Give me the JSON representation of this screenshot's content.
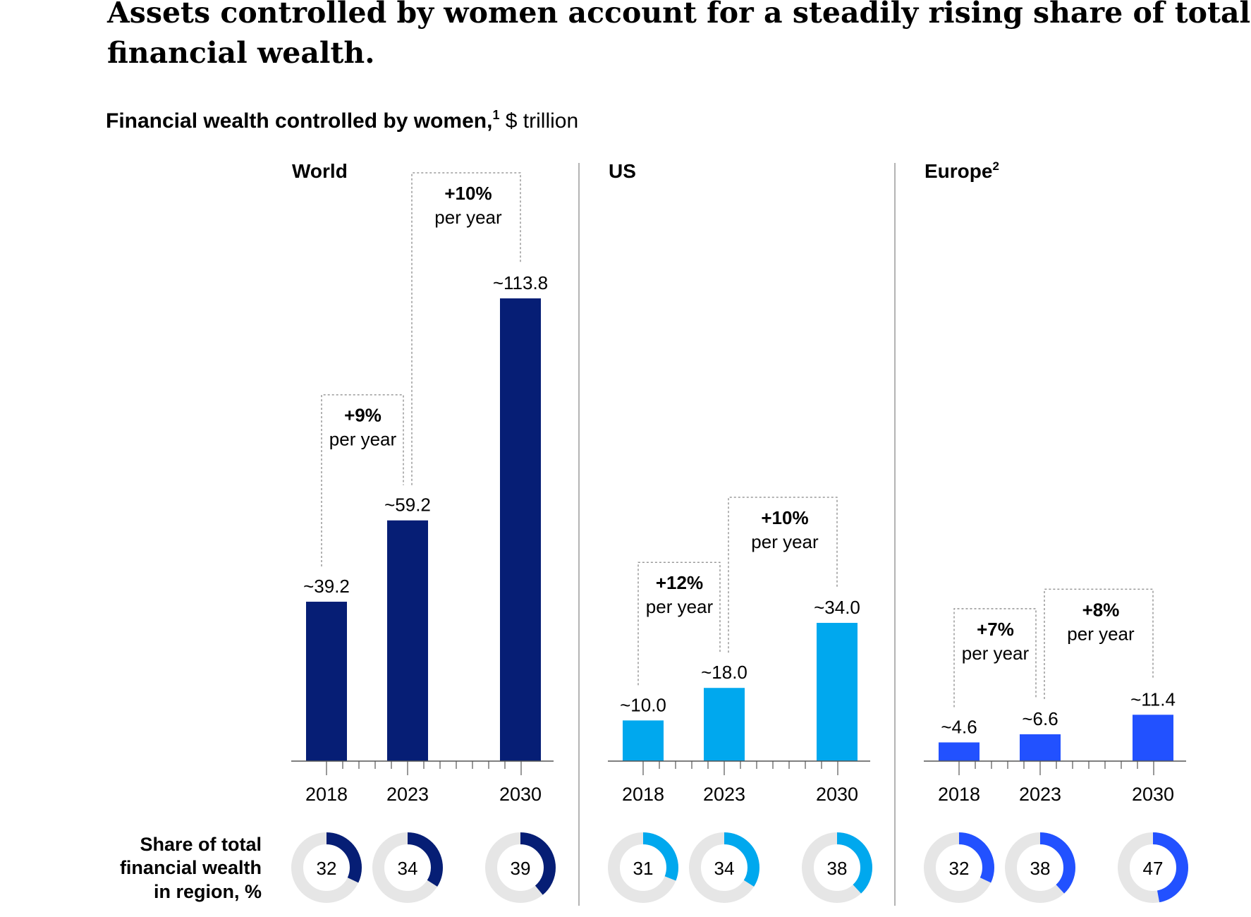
{
  "headline": "Assets controlled by women account for a steadily rising share of total financial wealth.",
  "headline_lines": [
    "Assets controlled by women account for a steadily rising share of total",
    "financial wealth."
  ],
  "subtitle": {
    "bold": "Financial wealth controlled by women,",
    "footnote": "1",
    "unit": " $ trillion"
  },
  "share_label_lines": [
    "Share of total",
    "financial wealth",
    "in region, %"
  ],
  "colors": {
    "world": "#061e75",
    "us": "#00a8ee",
    "europe": "#2251ff",
    "ring_background": "#e6e6e6",
    "text": "#000000",
    "axis": "#555555",
    "divider": "#9a9a9a",
    "dotted": "#888888"
  },
  "chart_data": [
    {
      "type": "bar",
      "region": "World",
      "title": "World",
      "title_footnote": "",
      "color_key": "world",
      "categories": [
        "2018",
        "2023",
        "2030"
      ],
      "values": [
        39.2,
        59.2,
        113.8
      ],
      "value_labels": [
        "~39.2",
        "~59.2",
        "~113.8"
      ],
      "growth": [
        {
          "from": "2018",
          "to": "2023",
          "rate": "+9%",
          "unit": "per year"
        },
        {
          "from": "2023",
          "to": "2030",
          "rate": "+10%",
          "unit": "per year"
        }
      ],
      "share": [
        32,
        34,
        39
      ],
      "ylim": [
        0,
        113.8
      ]
    },
    {
      "type": "bar",
      "region": "US",
      "title": "US",
      "title_footnote": "",
      "color_key": "us",
      "categories": [
        "2018",
        "2023",
        "2030"
      ],
      "values": [
        10.0,
        18.0,
        34.0
      ],
      "value_labels": [
        "~10.0",
        "~18.0",
        "~34.0"
      ],
      "growth": [
        {
          "from": "2018",
          "to": "2023",
          "rate": "+12%",
          "unit": "per year"
        },
        {
          "from": "2023",
          "to": "2030",
          "rate": "+10%",
          "unit": "per year"
        }
      ],
      "share": [
        31,
        34,
        38
      ],
      "ylim": [
        0,
        113.8
      ]
    },
    {
      "type": "bar",
      "region": "Europe",
      "title": "Europe",
      "title_footnote": "2",
      "color_key": "europe",
      "categories": [
        "2018",
        "2023",
        "2030"
      ],
      "values": [
        4.6,
        6.6,
        11.4
      ],
      "value_labels": [
        "~4.6",
        "~6.6",
        "~11.4"
      ],
      "growth": [
        {
          "from": "2018",
          "to": "2023",
          "rate": "+7%",
          "unit": "per year"
        },
        {
          "from": "2023",
          "to": "2030",
          "rate": "+8%",
          "unit": "per year"
        }
      ],
      "share": [
        32,
        38,
        47
      ],
      "ylim": [
        0,
        113.8
      ]
    }
  ]
}
